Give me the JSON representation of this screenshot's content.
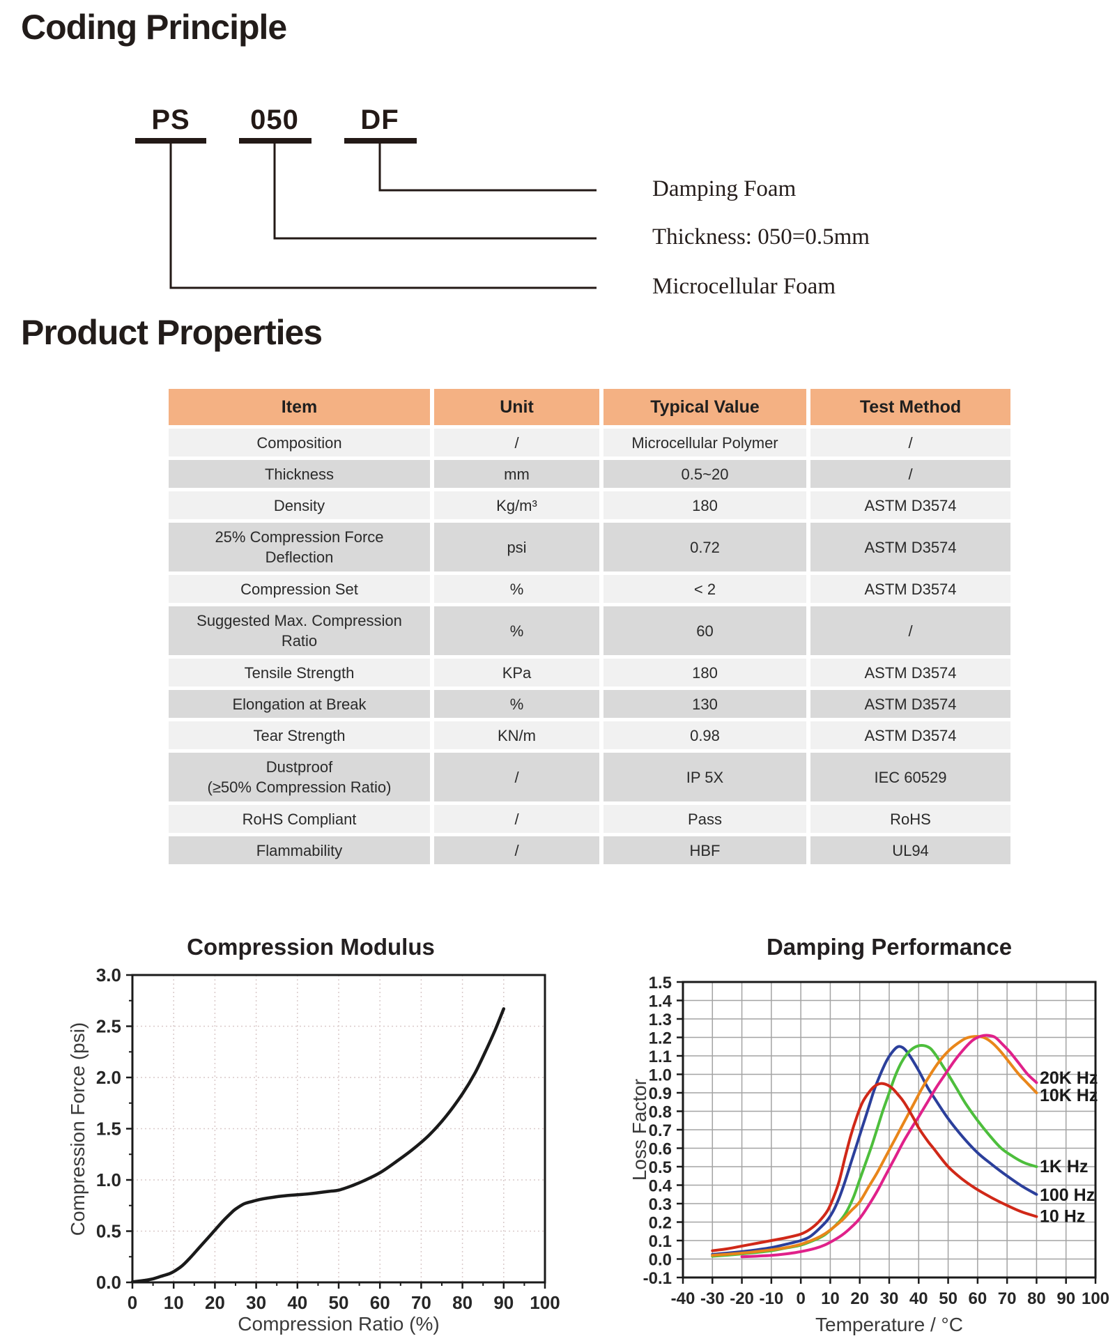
{
  "page": {
    "section1_title": "Coding Principle",
    "section2_title": "Product Properties"
  },
  "coding": {
    "codes": [
      {
        "code": "PS",
        "label": "Microcellular Foam"
      },
      {
        "code": "050",
        "label": "Thickness: 050=0.5mm"
      },
      {
        "code": "DF",
        "label": "Damping Foam"
      }
    ]
  },
  "table": {
    "headers": [
      "Item",
      "Unit",
      "Typical Value",
      "Test Method"
    ],
    "rows": [
      {
        "item_lines": [
          "Composition"
        ],
        "unit": "/",
        "value": "Microcellular Polymer",
        "method": "/"
      },
      {
        "item_lines": [
          "Thickness"
        ],
        "unit": "mm",
        "value": "0.5~20",
        "method": "/"
      },
      {
        "item_lines": [
          "Density"
        ],
        "unit": "Kg/m³",
        "value": "180",
        "method": "ASTM D3574"
      },
      {
        "item_lines": [
          "25% Compression Force",
          "Deflection"
        ],
        "unit": "psi",
        "value": "0.72",
        "method": "ASTM D3574"
      },
      {
        "item_lines": [
          "Compression Set"
        ],
        "unit": "%",
        "value": "< 2",
        "method": "ASTM D3574"
      },
      {
        "item_lines": [
          "Suggested Max. Compression",
          "Ratio"
        ],
        "unit": "%",
        "value": "60",
        "method": "/"
      },
      {
        "item_lines": [
          "Tensile Strength"
        ],
        "unit": "KPa",
        "value": "180",
        "method": "ASTM D3574"
      },
      {
        "item_lines": [
          "Elongation at Break"
        ],
        "unit": "%",
        "value": "130",
        "method": "ASTM D3574"
      },
      {
        "item_lines": [
          "Tear Strength"
        ],
        "unit": "KN/m",
        "value": "0.98",
        "method": "ASTM D3574"
      },
      {
        "item_lines": [
          "Dustproof",
          "(≥50% Compression Ratio)"
        ],
        "unit": "/",
        "value": "IP 5X",
        "method": "IEC 60529"
      },
      {
        "item_lines": [
          "RoHS Compliant"
        ],
        "unit": "/",
        "value": "Pass",
        "method": "RoHS"
      },
      {
        "item_lines": [
          "Flammability"
        ],
        "unit": "/",
        "value": "HBF",
        "method": "UL94"
      }
    ],
    "colors": {
      "header_bg": "#F4B183",
      "row_light": "#F1F1F1",
      "row_dark": "#D9D9D9"
    }
  },
  "chart_data": [
    {
      "type": "line",
      "title": "Compression Modulus",
      "xlabel": "Compression Ratio (%)",
      "ylabel": "Compression Force (psi)",
      "xlim": [
        0,
        100
      ],
      "ylim": [
        0,
        3
      ],
      "xtick_step": 10,
      "ytick_step": 0.5,
      "xminor_step": 5,
      "yminor_step": 0.25,
      "x_decimals": 0,
      "y_decimals": 1,
      "grid": "dotted",
      "series": [
        {
          "name": "compression-curve",
          "color": "#1a1a1a",
          "points": [
            [
              0,
              0.005
            ],
            [
              3,
              0.02
            ],
            [
              5,
              0.035
            ],
            [
              7,
              0.06
            ],
            [
              9,
              0.085
            ],
            [
              10,
              0.105
            ],
            [
              12,
              0.16
            ],
            [
              14,
              0.24
            ],
            [
              16,
              0.33
            ],
            [
              18,
              0.42
            ],
            [
              20,
              0.51
            ],
            [
              22,
              0.6
            ],
            [
              24,
              0.68
            ],
            [
              25,
              0.715
            ],
            [
              27,
              0.765
            ],
            [
              29,
              0.79
            ],
            [
              31,
              0.81
            ],
            [
              34,
              0.83
            ],
            [
              37,
              0.845
            ],
            [
              40,
              0.855
            ],
            [
              43,
              0.865
            ],
            [
              46,
              0.88
            ],
            [
              48,
              0.89
            ],
            [
              50,
              0.9
            ],
            [
              53,
              0.94
            ],
            [
              56,
              0.99
            ],
            [
              60,
              1.07
            ],
            [
              64,
              1.18
            ],
            [
              68,
              1.3
            ],
            [
              72,
              1.44
            ],
            [
              76,
              1.62
            ],
            [
              80,
              1.84
            ],
            [
              83,
              2.04
            ],
            [
              86,
              2.29
            ],
            [
              88,
              2.47
            ],
            [
              90,
              2.67
            ]
          ]
        }
      ]
    },
    {
      "type": "line",
      "title": "Damping Performance",
      "xlabel": "Temperature / °C",
      "ylabel": "Loss Factor",
      "xlim": [
        -40,
        100
      ],
      "ylim": [
        -0.1,
        1.5
      ],
      "xtick_step": 10,
      "ytick_step": 0.1,
      "x_decimals": 0,
      "y_decimals": 1,
      "grid": "solid",
      "series": [
        {
          "name": "100 Hz",
          "color": "#2b3f9b",
          "label_y": 0.345,
          "points": [
            [
              -30,
              0.025
            ],
            [
              -25,
              0.032
            ],
            [
              -20,
              0.04
            ],
            [
              -15,
              0.05
            ],
            [
              -10,
              0.062
            ],
            [
              -5,
              0.08
            ],
            [
              0,
              0.1
            ],
            [
              3,
              0.12
            ],
            [
              6,
              0.16
            ],
            [
              9,
              0.21
            ],
            [
              11,
              0.26
            ],
            [
              13,
              0.33
            ],
            [
              15,
              0.42
            ],
            [
              17,
              0.52
            ],
            [
              19,
              0.62
            ],
            [
              21,
              0.72
            ],
            [
              23,
              0.82
            ],
            [
              25,
              0.92
            ],
            [
              27,
              1.0
            ],
            [
              29,
              1.07
            ],
            [
              31,
              1.12
            ],
            [
              33,
              1.15
            ],
            [
              35,
              1.14
            ],
            [
              37,
              1.1
            ],
            [
              40,
              1.02
            ],
            [
              43,
              0.93
            ],
            [
              45,
              0.88
            ],
            [
              50,
              0.76
            ],
            [
              55,
              0.66
            ],
            [
              60,
              0.575
            ],
            [
              65,
              0.51
            ],
            [
              70,
              0.45
            ],
            [
              75,
              0.395
            ],
            [
              80,
              0.35
            ]
          ]
        },
        {
          "name": "1K Hz",
          "color": "#4dbe3c",
          "label_y": 0.5,
          "points": [
            [
              -30,
              0.015
            ],
            [
              -20,
              0.028
            ],
            [
              -10,
              0.045
            ],
            [
              -5,
              0.06
            ],
            [
              0,
              0.075
            ],
            [
              5,
              0.105
            ],
            [
              8,
              0.13
            ],
            [
              11,
              0.17
            ],
            [
              14,
              0.22
            ],
            [
              16,
              0.27
            ],
            [
              18,
              0.34
            ],
            [
              20,
              0.43
            ],
            [
              22,
              0.52
            ],
            [
              24,
              0.61
            ],
            [
              26,
              0.71
            ],
            [
              28,
              0.81
            ],
            [
              30,
              0.9
            ],
            [
              32,
              0.99
            ],
            [
              34,
              1.06
            ],
            [
              36,
              1.11
            ],
            [
              38,
              1.14
            ],
            [
              40,
              1.155
            ],
            [
              42,
              1.155
            ],
            [
              44,
              1.14
            ],
            [
              46,
              1.1
            ],
            [
              48,
              1.05
            ],
            [
              50,
              1.0
            ],
            [
              53,
              0.92
            ],
            [
              56,
              0.84
            ],
            [
              60,
              0.75
            ],
            [
              64,
              0.67
            ],
            [
              68,
              0.6
            ],
            [
              72,
              0.555
            ],
            [
              76,
              0.52
            ],
            [
              80,
              0.5
            ]
          ]
        },
        {
          "name": "10K Hz",
          "color": "#e9861a",
          "label_y": 0.885,
          "points": [
            [
              -30,
              0.02
            ],
            [
              -20,
              0.032
            ],
            [
              -10,
              0.05
            ],
            [
              -5,
              0.062
            ],
            [
              0,
              0.08
            ],
            [
              5,
              0.11
            ],
            [
              8,
              0.135
            ],
            [
              11,
              0.17
            ],
            [
              14,
              0.21
            ],
            [
              17,
              0.26
            ],
            [
              20,
              0.31
            ],
            [
              23,
              0.39
            ],
            [
              26,
              0.47
            ],
            [
              29,
              0.56
            ],
            [
              32,
              0.65
            ],
            [
              35,
              0.74
            ],
            [
              38,
              0.83
            ],
            [
              41,
              0.92
            ],
            [
              44,
              1.0
            ],
            [
              47,
              1.07
            ],
            [
              50,
              1.125
            ],
            [
              53,
              1.165
            ],
            [
              56,
              1.195
            ],
            [
              59,
              1.205
            ],
            [
              62,
              1.2
            ],
            [
              65,
              1.17
            ],
            [
              68,
              1.12
            ],
            [
              71,
              1.06
            ],
            [
              74,
              1.0
            ],
            [
              77,
              0.95
            ],
            [
              80,
              0.9
            ]
          ]
        },
        {
          "name": "20K Hz",
          "color": "#e0218a",
          "label_y": 0.98,
          "points": [
            [
              -20,
              0.012
            ],
            [
              -10,
              0.02
            ],
            [
              -5,
              0.028
            ],
            [
              0,
              0.04
            ],
            [
              5,
              0.058
            ],
            [
              8,
              0.075
            ],
            [
              11,
              0.1
            ],
            [
              14,
              0.13
            ],
            [
              17,
              0.17
            ],
            [
              20,
              0.22
            ],
            [
              23,
              0.29
            ],
            [
              26,
              0.37
            ],
            [
              29,
              0.46
            ],
            [
              32,
              0.55
            ],
            [
              35,
              0.64
            ],
            [
              38,
              0.72
            ],
            [
              40,
              0.77
            ],
            [
              43,
              0.85
            ],
            [
              46,
              0.93
            ],
            [
              49,
              1.0
            ],
            [
              52,
              1.07
            ],
            [
              55,
              1.13
            ],
            [
              58,
              1.18
            ],
            [
              60,
              1.2
            ],
            [
              62,
              1.21
            ],
            [
              64,
              1.21
            ],
            [
              66,
              1.2
            ],
            [
              68,
              1.17
            ],
            [
              71,
              1.12
            ],
            [
              74,
              1.06
            ],
            [
              77,
              1.0
            ],
            [
              80,
              0.955
            ]
          ]
        },
        {
          "name": "10 Hz",
          "color": "#d02818",
          "label_y": 0.23,
          "points": [
            [
              -30,
              0.045
            ],
            [
              -25,
              0.055
            ],
            [
              -20,
              0.07
            ],
            [
              -15,
              0.085
            ],
            [
              -10,
              0.1
            ],
            [
              -5,
              0.115
            ],
            [
              0,
              0.135
            ],
            [
              3,
              0.16
            ],
            [
              6,
              0.2
            ],
            [
              9,
              0.26
            ],
            [
              11,
              0.33
            ],
            [
              13,
              0.42
            ],
            [
              15,
              0.55
            ],
            [
              17,
              0.67
            ],
            [
              19,
              0.77
            ],
            [
              21,
              0.85
            ],
            [
              23,
              0.9
            ],
            [
              25,
              0.935
            ],
            [
              27,
              0.95
            ],
            [
              29,
              0.945
            ],
            [
              31,
              0.925
            ],
            [
              33,
              0.89
            ],
            [
              35,
              0.85
            ],
            [
              38,
              0.77
            ],
            [
              40,
              0.71
            ],
            [
              43,
              0.64
            ],
            [
              45,
              0.6
            ],
            [
              50,
              0.5
            ],
            [
              55,
              0.43
            ],
            [
              60,
              0.375
            ],
            [
              65,
              0.33
            ],
            [
              70,
              0.29
            ],
            [
              75,
              0.255
            ],
            [
              80,
              0.23
            ]
          ]
        }
      ]
    }
  ]
}
